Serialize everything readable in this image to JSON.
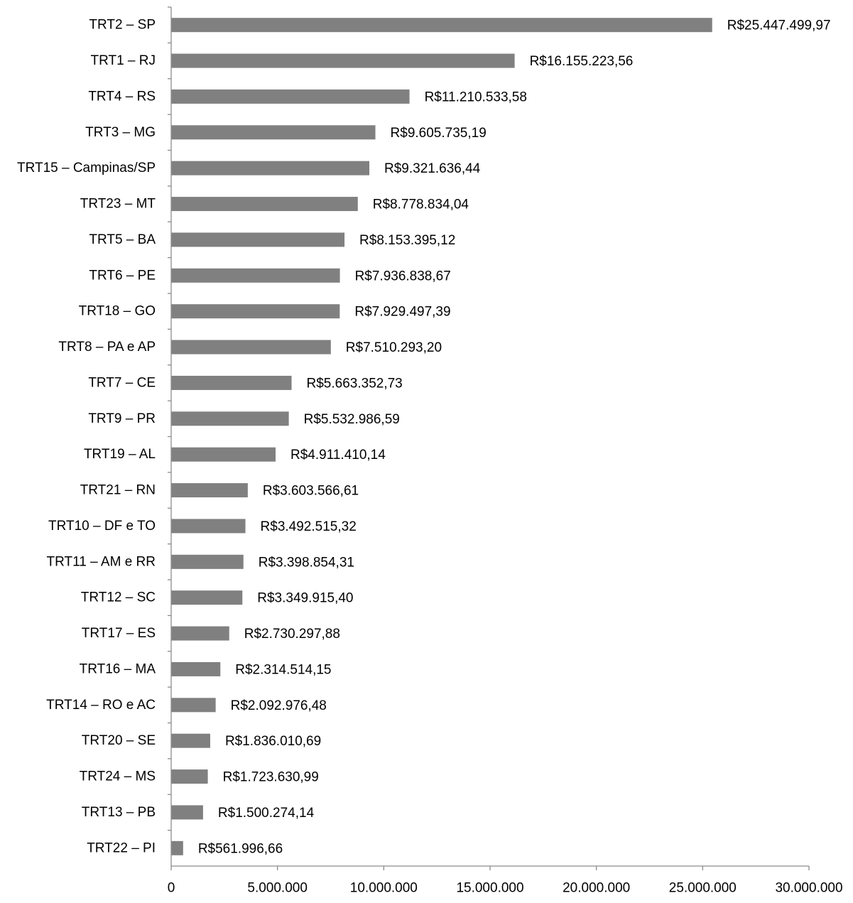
{
  "chart_data": {
    "type": "bar",
    "orientation": "horizontal",
    "title": "",
    "xlabel": "",
    "ylabel": "",
    "xlim": [
      0,
      30000000
    ],
    "grid": false,
    "legend": "none",
    "bar_color": "#808080",
    "axis_color": "#8c8c8c",
    "categories": [
      "TRT2 – SP",
      "TRT1 – RJ",
      "TRT4 – RS",
      "TRT3 – MG",
      "TRT15 – Campinas/SP",
      "TRT23 – MT",
      "TRT5 – BA",
      "TRT6 – PE",
      "TRT18 – GO",
      "TRT8 – PA e AP",
      "TRT7 – CE",
      "TRT9 – PR",
      "TRT19 – AL",
      "TRT21 – RN",
      "TRT10 – DF e TO",
      "TRT11 – AM e RR",
      "TRT12 – SC",
      "TRT17 – ES",
      "TRT16 – MA",
      "TRT14 – RO e AC",
      "TRT20 – SE",
      "TRT24 – MS",
      "TRT13 – PB",
      "TRT22 – PI"
    ],
    "values": [
      25447499.97,
      16155223.56,
      11210533.58,
      9605735.19,
      9321636.44,
      8778834.04,
      8153395.12,
      7936838.67,
      7929497.39,
      7510293.2,
      5663352.73,
      5532986.59,
      4911410.14,
      3603566.61,
      3492515.32,
      3398854.31,
      3349915.4,
      2730297.88,
      2314514.15,
      2092976.48,
      1836010.69,
      1723630.99,
      1500274.14,
      561996.66
    ],
    "value_labels": [
      "R$25.447.499,97",
      "R$16.155.223,56",
      "R$11.210.533,58",
      "R$9.605.735,19",
      "R$9.321.636,44",
      "R$8.778.834,04",
      "R$8.153.395,12",
      "R$7.936.838,67",
      "R$7.929.497,39",
      "R$7.510.293,20",
      "R$5.663.352,73",
      "R$5.532.986,59",
      "R$4.911.410,14",
      "R$3.603.566,61",
      "R$3.492.515,32",
      "R$3.398.854,31",
      "R$3.349.915,40",
      "R$2.730.297,88",
      "R$2.314.514,15",
      "R$2.092.976,48",
      "R$1.836.010,69",
      "R$1.723.630,99",
      "R$1.500.274,14",
      "R$561.996,66"
    ],
    "x_ticks": [
      0,
      5000000,
      10000000,
      15000000,
      20000000,
      25000000,
      30000000
    ],
    "x_tick_labels": [
      "0",
      "5.000.000",
      "10.000.000",
      "15.000.000",
      "20.000.000",
      "25.000.000",
      "30.000.000"
    ]
  }
}
